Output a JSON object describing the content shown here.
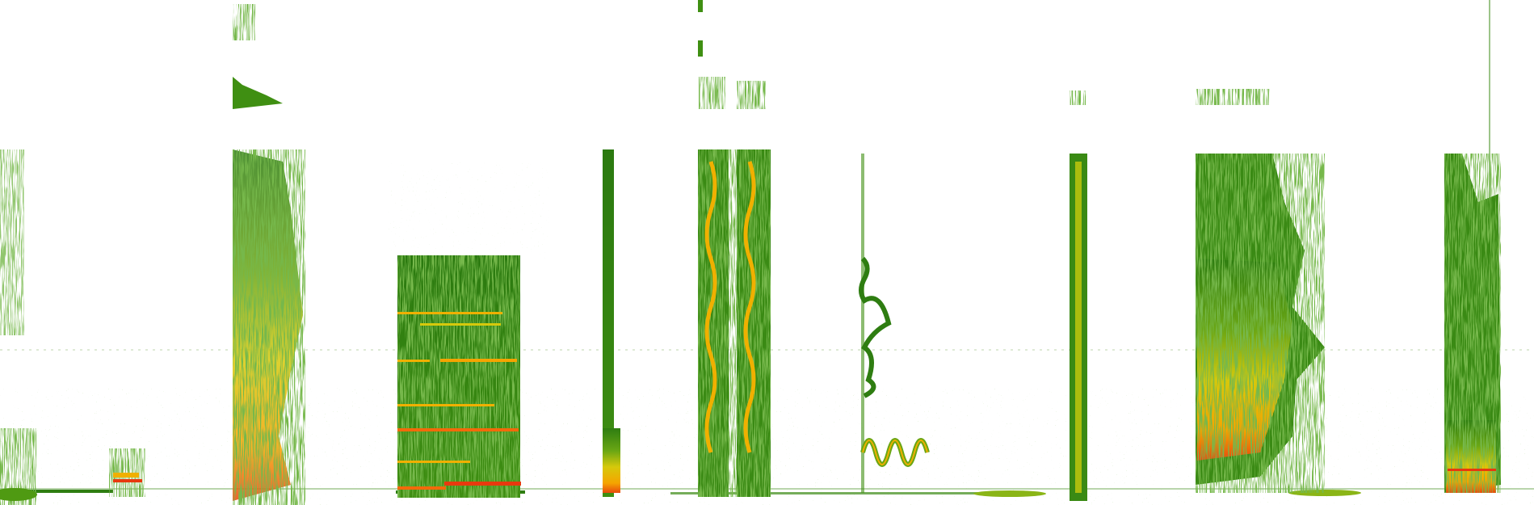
{
  "image": {
    "kind": "spectrogram",
    "background": "#ffffff",
    "colormap": [
      "#2e7d11",
      "#4f9a12",
      "#c9c90c",
      "#f5b300",
      "#f26a0a",
      "#e8390e"
    ],
    "text": []
  }
}
